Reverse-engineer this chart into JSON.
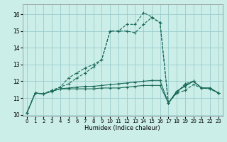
{
  "xlabel": "Humidex (Indice chaleur)",
  "bg_color": "#cceee8",
  "grid_color": "#99cccc",
  "line_color": "#1a6b5a",
  "xlim": [
    -0.5,
    23.5
  ],
  "ylim": [
    9.9,
    16.6
  ],
  "yticks": [
    10,
    11,
    12,
    13,
    14,
    15,
    16
  ],
  "series": [
    {
      "y": [
        10.1,
        11.3,
        11.25,
        11.4,
        11.55,
        11.55,
        11.55,
        11.55,
        11.55,
        11.6,
        11.6,
        11.6,
        11.65,
        11.7,
        11.75,
        11.75,
        11.75,
        10.7,
        11.4,
        11.7,
        12.0,
        11.6,
        11.6,
        11.3
      ],
      "style": "-",
      "lw": 0.8
    },
    {
      "y": [
        10.1,
        11.3,
        11.25,
        11.4,
        11.55,
        11.6,
        11.65,
        11.7,
        11.7,
        11.75,
        11.8,
        11.85,
        11.9,
        11.95,
        12.0,
        12.05,
        12.05,
        10.7,
        11.4,
        11.75,
        12.0,
        11.6,
        11.6,
        11.3
      ],
      "style": "-",
      "lw": 0.8
    },
    {
      "y": [
        10.1,
        11.3,
        11.25,
        11.45,
        11.65,
        12.2,
        12.5,
        12.8,
        13.0,
        13.3,
        15.0,
        15.0,
        15.0,
        14.9,
        15.4,
        15.8,
        15.5,
        10.7,
        11.3,
        11.45,
        11.8,
        11.6,
        11.55,
        11.3
      ],
      "style": "--",
      "lw": 0.8
    },
    {
      "y": [
        10.1,
        11.3,
        11.25,
        11.45,
        11.65,
        11.85,
        12.2,
        12.5,
        12.85,
        13.3,
        15.0,
        15.0,
        15.4,
        15.4,
        16.1,
        15.85,
        15.5,
        10.7,
        11.3,
        11.85,
        12.0,
        11.6,
        11.55,
        11.3
      ],
      "style": "--",
      "lw": 0.8
    }
  ]
}
